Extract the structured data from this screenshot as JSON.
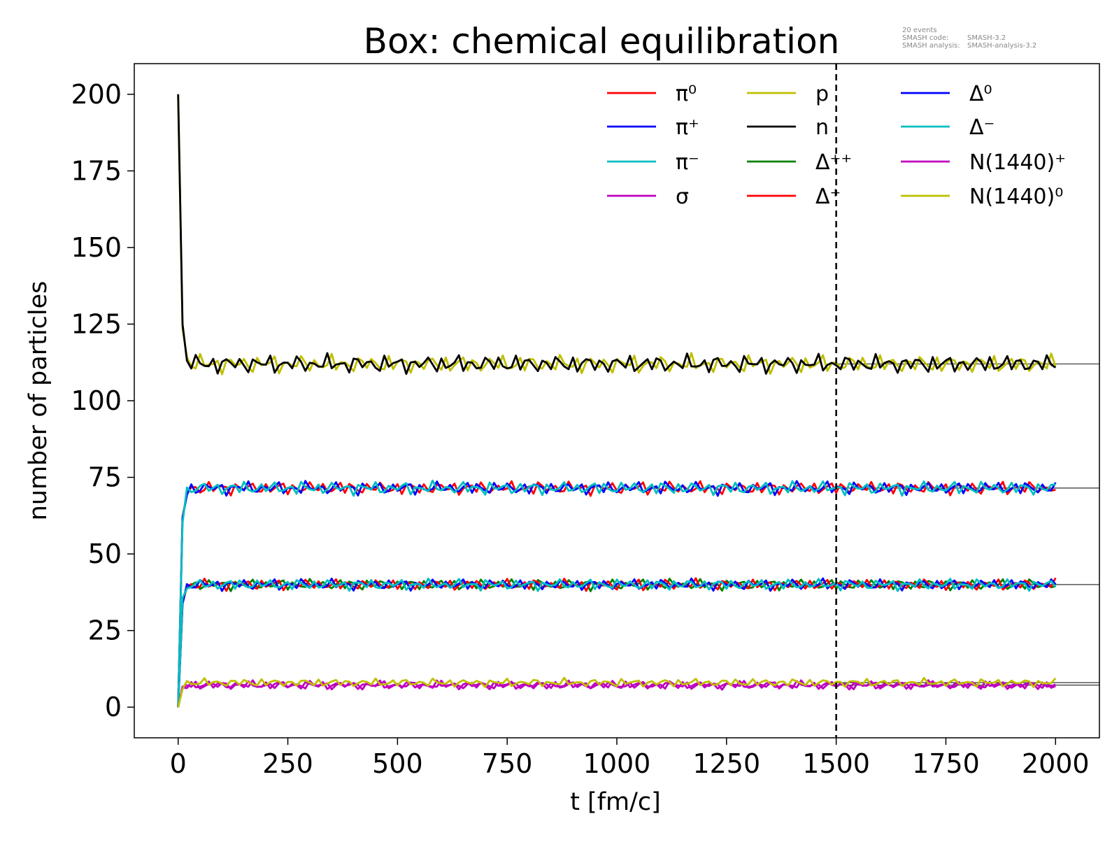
{
  "chart_data": {
    "type": "line",
    "title": "Box: chemical equilibration",
    "meta": {
      "events": "20 events",
      "code_label": "SMASH code:",
      "code_value": "SMASH-3.2",
      "analysis_label": "SMASH analysis:",
      "analysis_value": "SMASH-analysis-3.2"
    },
    "xlabel": "t [fm/c]",
    "ylabel": "number of particles",
    "xlim": [
      -100,
      2100
    ],
    "ylim": [
      -10,
      210
    ],
    "xticks": [
      0,
      250,
      500,
      750,
      1000,
      1250,
      1500,
      1750,
      2000
    ],
    "yticks": [
      0,
      25,
      50,
      75,
      100,
      125,
      150,
      175,
      200
    ],
    "grid": false,
    "legend_position": "top-right",
    "legend_columns": 3,
    "vline": {
      "x": 1500,
      "style": "dashed",
      "color": "#000000"
    },
    "t_start": 0,
    "t_end": 2000,
    "t_step": 10,
    "series": [
      {
        "name": "π⁰",
        "color": "#ff0000",
        "initial": 0,
        "equilibrium": 71.5,
        "amplitude": 1.3,
        "phase": 1.1
      },
      {
        "name": "π⁺",
        "color": "#0000ff",
        "initial": 0,
        "equilibrium": 71.5,
        "amplitude": 1.3,
        "phase": 2.3
      },
      {
        "name": "π⁻",
        "color": "#00bfbf",
        "initial": 0,
        "equilibrium": 71.5,
        "amplitude": 1.3,
        "phase": 3.7
      },
      {
        "name": "σ",
        "color": "#bf00bf",
        "initial": 0,
        "equilibrium": 7.2,
        "amplitude": 0.8,
        "phase": 0.4
      },
      {
        "name": "p",
        "color": "#bfbf00",
        "initial": 200,
        "equilibrium": 112,
        "amplitude": 1.8,
        "phase": 4.4
      },
      {
        "name": "n",
        "color": "#000000",
        "initial": 200,
        "equilibrium": 112,
        "amplitude": 1.8,
        "phase": 5.9
      },
      {
        "name": "Δ⁺⁺",
        "color": "#008000",
        "initial": 0,
        "equilibrium": 40,
        "amplitude": 1.1,
        "phase": 0.9
      },
      {
        "name": "Δ⁺",
        "color": "#ff0000",
        "initial": 0,
        "equilibrium": 40,
        "amplitude": 1.1,
        "phase": 2.8
      },
      {
        "name": "Δ⁰",
        "color": "#0000ff",
        "initial": 0,
        "equilibrium": 40,
        "amplitude": 1.1,
        "phase": 4.1
      },
      {
        "name": "Δ⁻",
        "color": "#00bfbf",
        "initial": 0,
        "equilibrium": 40,
        "amplitude": 1.1,
        "phase": 5.3
      },
      {
        "name": "N(1440)⁺",
        "color": "#bf00bf",
        "initial": 0,
        "equilibrium": 7.2,
        "amplitude": 0.8,
        "phase": 1.7
      },
      {
        "name": "N(1440)⁰",
        "color": "#bfbf00",
        "initial": 0,
        "equilibrium": 8.0,
        "amplitude": 0.8,
        "phase": 3.2
      }
    ],
    "equilibrium_reference_lines": [
      112,
      71.5,
      40,
      8,
      7.2
    ]
  }
}
